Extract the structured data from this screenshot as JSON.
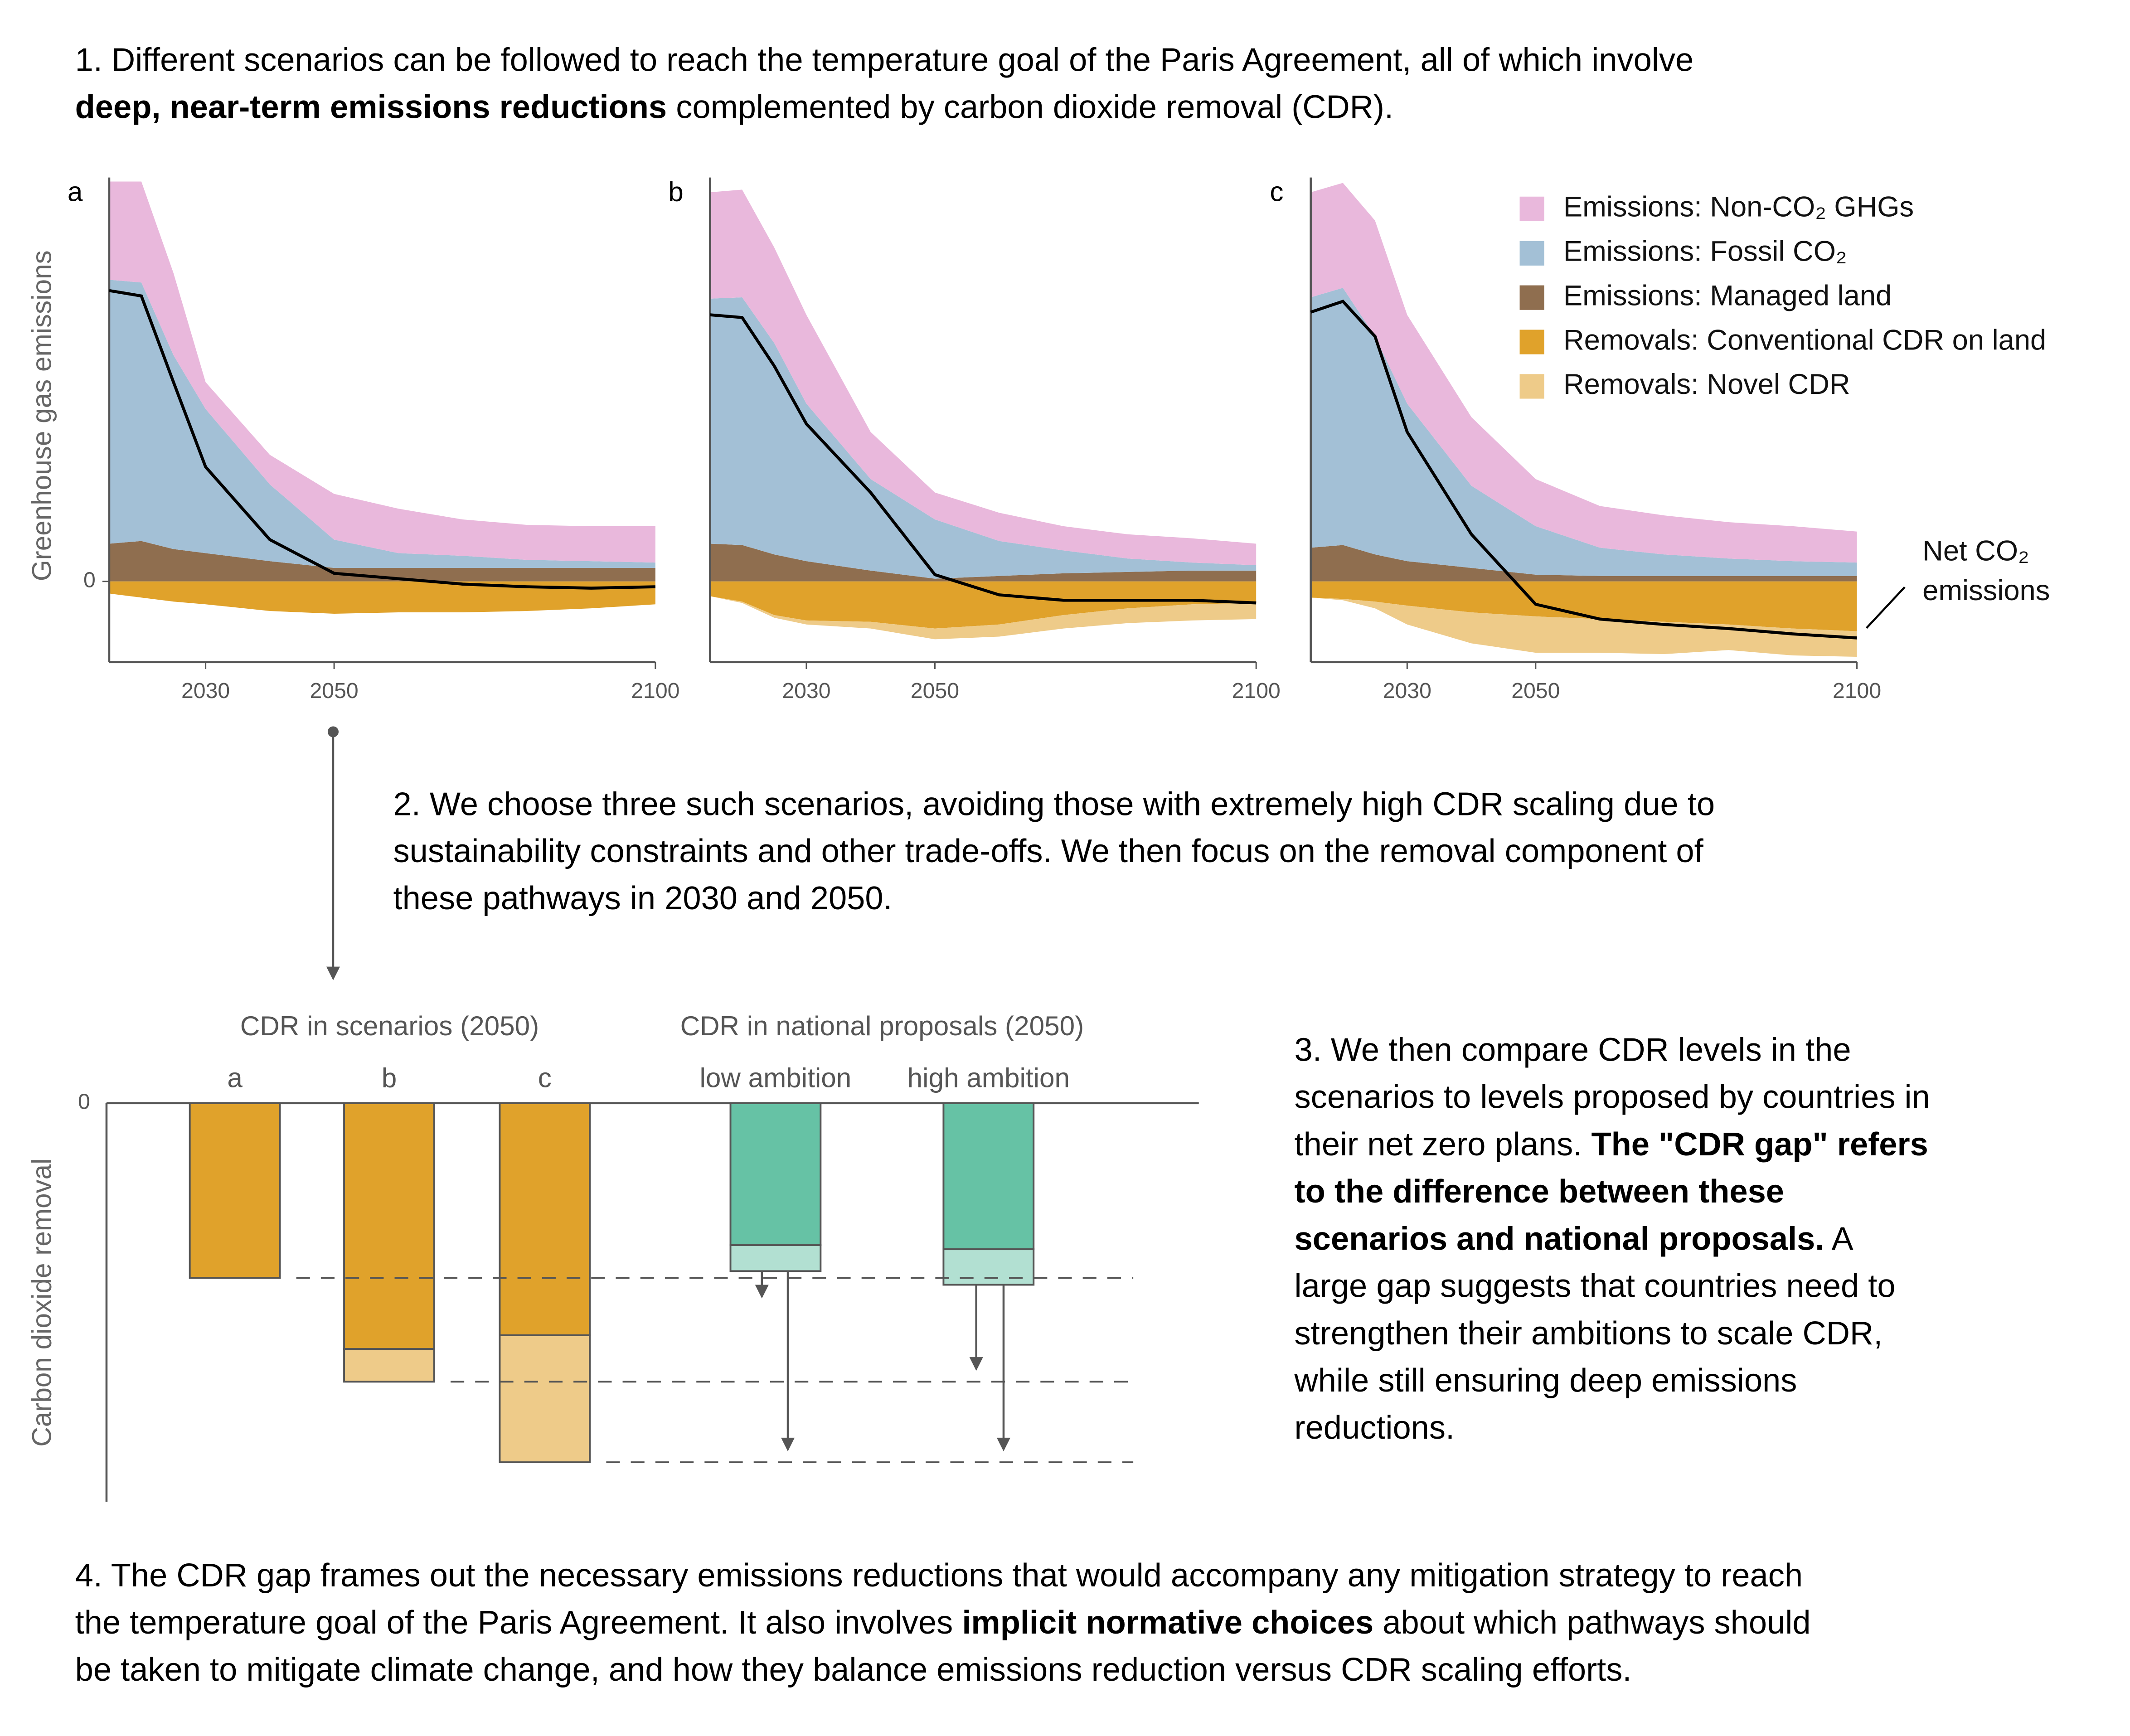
{
  "paragraphs": [
    {
      "lines": [
        [
          "1. Different scenarios can be followed to reach the temperature goal of the Paris Agreement, all of which involve"
        ],
        [
          {
            "bold": "deep, near-term emissions reductions"
          },
          " complemented by carbon dioxide removal (CDR)."
        ]
      ]
    },
    {
      "lines": [
        [
          "2. We choose three such scenarios, avoiding those with extremely high CDR scaling due to"
        ],
        [
          "sustainability constraints and other trade-offs. We then focus on the removal component of"
        ],
        [
          "these pathways in 2030 and 2050."
        ]
      ]
    },
    {
      "lines": [
        [
          "3. We then compare CDR levels in the"
        ],
        [
          "scenarios to levels proposed by countries in"
        ],
        [
          "their net zero plans. ",
          {
            "bold": "The \"CDR gap\" refers"
          }
        ],
        [
          {
            "bold": "to the difference between these"
          }
        ],
        [
          {
            "bold": "scenarios and national proposals."
          },
          " A"
        ],
        [
          "large gap suggests that countries need to"
        ],
        [
          "strengthen their ambitions to scale CDR,"
        ],
        [
          "while still ensuring deep emissions"
        ],
        [
          "reductions."
        ]
      ]
    },
    {
      "lines": [
        [
          "4. The CDR gap frames out the necessary emissions reductions that would accompany any mitigation strategy to reach"
        ],
        [
          "the temperature goal of the Paris Agreement. It also involves ",
          {
            "bold": "implicit normative choices"
          },
          " about which pathways should"
        ],
        [
          "be taken to mitigate climate change, and how they balance emissions reduction versus CDR scaling efforts."
        ]
      ]
    }
  ],
  "chart_data": [
    {
      "type": "area",
      "label": "a",
      "ylabel": "Greenhouse gas emissions",
      "x": [
        2015,
        2020,
        2025,
        2030,
        2040,
        2050,
        2060,
        2070,
        2080,
        2090,
        2100
      ],
      "xlim": [
        2015,
        2100
      ],
      "xticks": [
        2030,
        2050,
        2100
      ],
      "ylim": [
        -6,
        30
      ],
      "yticks": [
        0
      ],
      "series": [
        {
          "color": "#e9b8dc",
          "values": [
            7.3,
            7.5,
            6.1,
            2.0,
            2.2,
            3.4,
            3.3,
            2.7,
            2.6,
            2.6,
            2.7
          ]
        },
        {
          "color": "#a3c0d6",
          "values": [
            19.6,
            19.2,
            14.4,
            10.7,
            5.7,
            2.1,
            1.1,
            0.9,
            0.6,
            0.5,
            0.4
          ]
        },
        {
          "color": "#8f6e4f",
          "values": [
            2.8,
            3.0,
            2.4,
            2.1,
            1.5,
            1.0,
            1.0,
            1.0,
            1.0,
            1.0,
            1.0
          ]
        },
        {
          "color": "#e0a22b",
          "values": [
            -0.9,
            -1.2,
            -1.5,
            -1.7,
            -2.2,
            -2.4,
            -2.3,
            -2.3,
            -2.2,
            -2.0,
            -1.7
          ]
        },
        {
          "color": "#eecb89",
          "values": [
            0,
            0,
            0,
            0,
            0,
            0,
            0,
            0,
            0,
            0,
            0
          ]
        }
      ],
      "net_line": {
        "color": "#000000",
        "values": [
          21.6,
          21.2,
          14.8,
          8.5,
          3.1,
          0.6,
          0.2,
          -0.2,
          -0.4,
          -0.5,
          -0.4
        ]
      }
    },
    {
      "type": "area",
      "label": "b",
      "x": [
        2015,
        2020,
        2025,
        2030,
        2040,
        2050,
        2060,
        2070,
        2080,
        2090,
        2100
      ],
      "xlim": [
        2015,
        2100
      ],
      "xticks": [
        2030,
        2050,
        2100
      ],
      "ylim": [
        -6,
        30
      ],
      "series": [
        {
          "color": "#e9b8dc",
          "values": [
            7.9,
            8.0,
            7.1,
            6.6,
            3.5,
            2.0,
            2.1,
            1.8,
            1.8,
            1.8,
            1.6
          ]
        },
        {
          "color": "#a3c0d6",
          "values": [
            18.2,
            18.4,
            15.7,
            11.7,
            6.8,
            4.4,
            2.6,
            1.7,
            1.0,
            0.6,
            0.4
          ]
        },
        {
          "color": "#8f6e4f",
          "values": [
            2.8,
            2.7,
            2.0,
            1.5,
            0.8,
            0.2,
            0.4,
            0.6,
            0.7,
            0.8,
            0.8
          ]
        },
        {
          "color": "#e0a22b",
          "values": [
            -1.1,
            -1.5,
            -2.5,
            -2.9,
            -3.0,
            -3.5,
            -3.2,
            -2.5,
            -2.0,
            -1.7,
            -1.6
          ]
        },
        {
          "color": "#eecb89",
          "values": [
            0,
            -0.1,
            -0.2,
            -0.3,
            -0.5,
            -0.8,
            -0.9,
            -1.0,
            -1.1,
            -1.2,
            -1.2
          ]
        }
      ],
      "net_line": {
        "color": "#000000",
        "values": [
          19.8,
          19.6,
          16.0,
          11.7,
          6.6,
          0.5,
          -1.0,
          -1.4,
          -1.4,
          -1.4,
          -1.6
        ]
      }
    },
    {
      "type": "area",
      "label": "c",
      "x": [
        2015,
        2020,
        2025,
        2030,
        2040,
        2050,
        2060,
        2070,
        2080,
        2090,
        2100
      ],
      "xlim": [
        2015,
        2100
      ],
      "xticks": [
        2030,
        2050,
        2100
      ],
      "ylim": [
        -6,
        30
      ],
      "legend": "top-right",
      "series": [
        {
          "name": "Emissions: Non-CO₂ GHGs",
          "color": "#e9b8dc",
          "values": [
            7.8,
            7.8,
            8.6,
            6.6,
            5.1,
            3.5,
            3.1,
            2.9,
            2.7,
            2.6,
            2.3
          ]
        },
        {
          "name": "Emissions: Fossil CO₂",
          "color": "#a3c0d6",
          "values": [
            18.6,
            19.1,
            16.2,
            11.7,
            6.1,
            3.6,
            2.1,
            1.6,
            1.3,
            1.1,
            1.0
          ]
        },
        {
          "name": "Emissions: Managed land",
          "color": "#8f6e4f",
          "values": [
            2.5,
            2.7,
            2.0,
            1.5,
            1.0,
            0.5,
            0.4,
            0.4,
            0.4,
            0.4,
            0.4
          ]
        },
        {
          "name": "Removals: Conventional CDR on land",
          "color": "#e0a22b",
          "values": [
            -1.2,
            -1.3,
            -1.5,
            -1.8,
            -2.3,
            -2.6,
            -2.8,
            -3.0,
            -3.2,
            -3.5,
            -3.7
          ]
        },
        {
          "name": "Removals: Novel CDR",
          "color": "#eecb89",
          "values": [
            0,
            -0.1,
            -0.5,
            -1.4,
            -2.3,
            -2.7,
            -2.5,
            -2.4,
            -1.9,
            -2.0,
            -1.9
          ]
        }
      ],
      "net_line": {
        "color": "#000000",
        "values": [
          20.0,
          20.8,
          18.2,
          11.1,
          3.5,
          -1.7,
          -2.8,
          -3.2,
          -3.5,
          -3.9,
          -4.2
        ]
      },
      "annotation": [
        "Net CO₂",
        "emissions"
      ]
    },
    {
      "type": "bar",
      "ylabel": "Carbon dioxide removal",
      "groups": [
        {
          "label": "CDR in scenarios (2050)",
          "categories": [
            "a",
            "b",
            "c"
          ]
        },
        {
          "label": "CDR in national proposals (2050)",
          "categories": [
            "low ambition",
            "high ambition"
          ]
        }
      ],
      "ylim": [
        -29,
        0
      ],
      "yticks": [
        0
      ],
      "series": [
        {
          "colors": [
            "#e0a22b",
            "#e0a22b",
            "#e0a22b",
            "#66c2a5",
            "#66c2a5"
          ],
          "values": [
            -12.8,
            -18.0,
            -17.0,
            -10.4,
            -10.7
          ]
        },
        {
          "colors": [
            "#eecb89",
            "#eecb89",
            "#eecb89",
            "#b2e0d2",
            "#b2e0d2"
          ],
          "values": [
            0,
            -2.4,
            -9.3,
            -1.9,
            -2.6
          ]
        }
      ]
    }
  ]
}
